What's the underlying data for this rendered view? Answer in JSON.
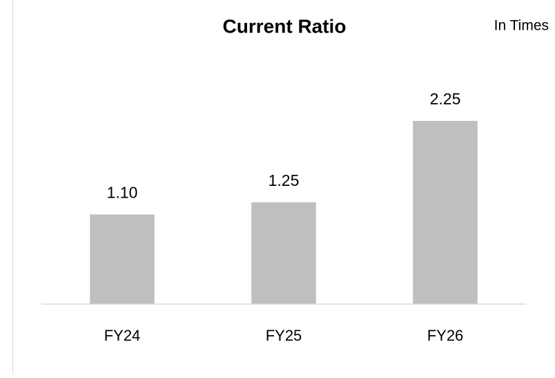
{
  "chart_data": {
    "type": "bar",
    "title": "Current Ratio",
    "unit_note": "In Times",
    "categories": [
      "FY24",
      "FY25",
      "FY26"
    ],
    "values": [
      1.1,
      1.25,
      2.25
    ],
    "value_labels": [
      "1.10",
      "1.25",
      "2.25"
    ],
    "color": "#bfbfbf",
    "ylim": [
      0,
      2.5
    ]
  }
}
